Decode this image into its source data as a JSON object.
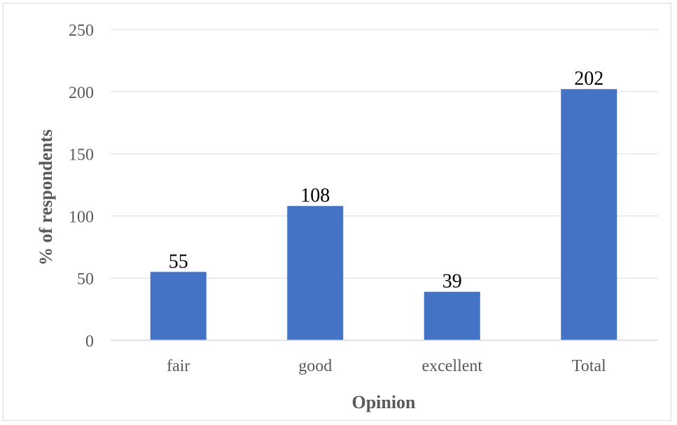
{
  "chart_data": {
    "type": "bar",
    "title": "",
    "xlabel": "Opinion",
    "ylabel": "% of respondents",
    "categories": [
      "fair",
      "good",
      "excellent",
      "Total"
    ],
    "values": [
      55,
      108,
      39,
      202
    ],
    "data_labels": [
      "55",
      "108",
      "39",
      "202"
    ],
    "ylim": [
      0,
      250
    ],
    "yticks": [
      0,
      50,
      100,
      150,
      200,
      250
    ],
    "grid": "horizontal",
    "legend": "none",
    "bar_color": "#4472c4",
    "gridline_color": "#d9d9d9"
  }
}
